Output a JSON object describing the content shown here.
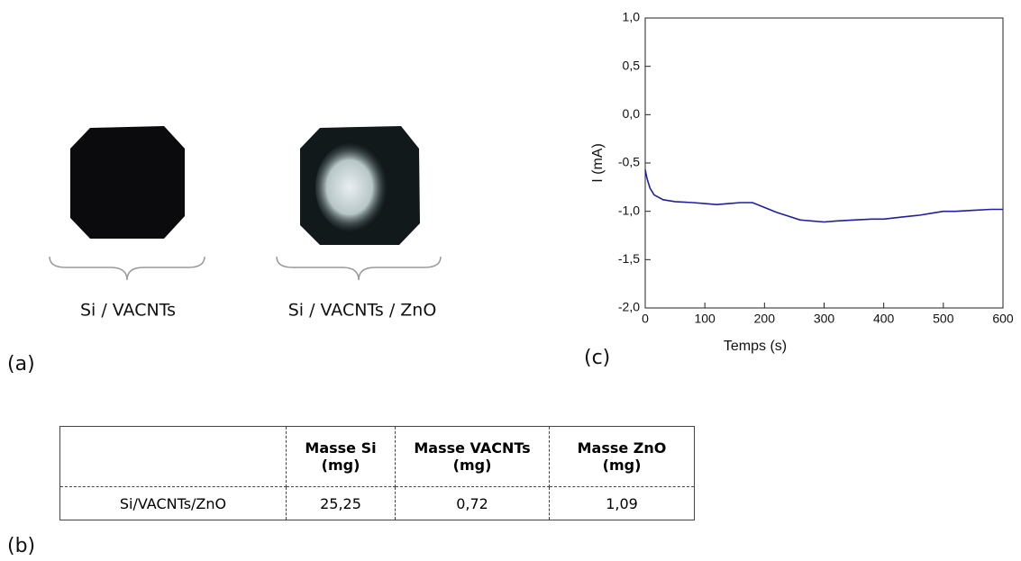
{
  "panel_a": {
    "label": "(a)",
    "captions": [
      "Si / VACNTs",
      "Si / VACNTs / ZnO"
    ]
  },
  "panel_b": {
    "label": "(b)",
    "table": {
      "header": [
        "Masse Si (mg)",
        "Masse VACNTs (mg)",
        "Masse ZnO (mg)"
      ],
      "rows": [
        [
          "Si/VACNTs/ZnO",
          "25,25",
          "0,72",
          "1,09"
        ]
      ]
    }
  },
  "panel_c": {
    "label": "(c)"
  },
  "chart_data": {
    "type": "line",
    "x_label": "Temps (s)",
    "y_label": "I (mA)",
    "x": [
      0,
      3,
      8,
      15,
      30,
      50,
      80,
      100,
      120,
      140,
      160,
      180,
      200,
      220,
      240,
      260,
      280,
      300,
      320,
      350,
      380,
      400,
      430,
      460,
      480,
      500,
      520,
      550,
      580,
      600
    ],
    "series": [
      {
        "color": "#1f1fa0",
        "values": [
          -0.57,
          -0.66,
          -0.76,
          -0.83,
          -0.88,
          -0.9,
          -0.91,
          -0.92,
          -0.93,
          -0.92,
          -0.91,
          -0.91,
          -0.96,
          -1.01,
          -1.05,
          -1.09,
          -1.1,
          -1.11,
          -1.1,
          -1.09,
          -1.08,
          -1.08,
          -1.06,
          -1.04,
          -1.02,
          -1.0,
          -1.0,
          -0.99,
          -0.98,
          -0.98
        ]
      }
    ],
    "xlim": [
      0,
      600
    ],
    "ylim": [
      -2,
      1
    ],
    "xticks": [
      0,
      100,
      200,
      300,
      400,
      500,
      600
    ],
    "yticks": [
      {
        "value": -2,
        "label": "-2,0"
      },
      {
        "value": -1.5,
        "label": "-1,5"
      },
      {
        "value": -1,
        "label": "-1,0"
      },
      {
        "value": -0.5,
        "label": "-0,5"
      },
      {
        "value": 0,
        "label": "0,0"
      },
      {
        "value": 0.5,
        "label": "0,5"
      },
      {
        "value": 1,
        "label": "1,0"
      }
    ]
  }
}
